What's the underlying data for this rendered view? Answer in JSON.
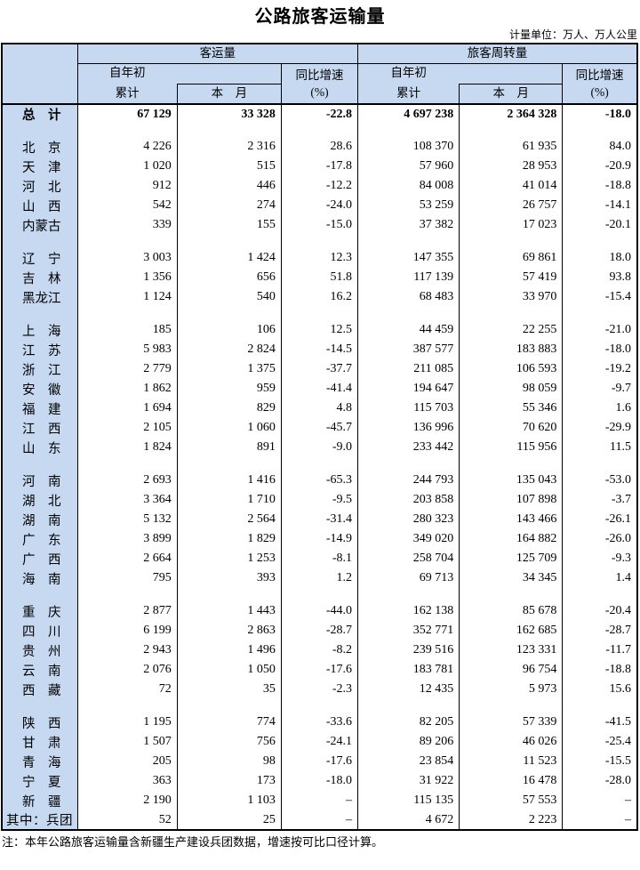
{
  "title": "公路旅客运输量",
  "unit_note": "计量单位：万人、万人公里",
  "footnote": "注：本年公路旅客运输量含新疆生产建设兵团数据，增速按可比口径计算。",
  "colors": {
    "header_bg": "#c6d9f1",
    "border": "#000000",
    "background": "#ffffff"
  },
  "table": {
    "group_headers": [
      "客运量",
      "旅客周转量"
    ],
    "sub_headers": {
      "cum_top": "自年初",
      "cum_bottom": "累计",
      "month": "本　月",
      "growth": "同比增速\n(%)"
    },
    "total_row": {
      "label": "总　计",
      "values": [
        "67 129",
        "33 328",
        "-22.8",
        "4 697 238",
        "2 364 328",
        "-18.0"
      ]
    },
    "groups": [
      {
        "rows": [
          {
            "label": "北　京",
            "values": [
              "4 226",
              "2 316",
              "28.6",
              "108 370",
              "61 935",
              "84.0"
            ]
          },
          {
            "label": "天　津",
            "values": [
              "1 020",
              "515",
              "-17.8",
              "57 960",
              "28 953",
              "-20.9"
            ]
          },
          {
            "label": "河　北",
            "values": [
              "912",
              "446",
              "-12.2",
              "84 008",
              "41 014",
              "-18.8"
            ]
          },
          {
            "label": "山　西",
            "values": [
              "542",
              "274",
              "-24.0",
              "53 259",
              "26 757",
              "-14.1"
            ]
          },
          {
            "label": "内蒙古",
            "values": [
              "339",
              "155",
              "-15.0",
              "37 382",
              "17 023",
              "-20.1"
            ]
          }
        ]
      },
      {
        "rows": [
          {
            "label": "辽　宁",
            "values": [
              "3 003",
              "1 424",
              "12.3",
              "147 355",
              "69 861",
              "18.0"
            ]
          },
          {
            "label": "吉　林",
            "values": [
              "1 356",
              "656",
              "51.8",
              "117 139",
              "57 419",
              "93.8"
            ]
          },
          {
            "label": "黑龙江",
            "values": [
              "1 124",
              "540",
              "16.2",
              "68 483",
              "33 970",
              "-15.4"
            ]
          }
        ]
      },
      {
        "rows": [
          {
            "label": "上　海",
            "values": [
              "185",
              "106",
              "12.5",
              "44 459",
              "22 255",
              "-21.0"
            ]
          },
          {
            "label": "江　苏",
            "values": [
              "5 983",
              "2 824",
              "-14.5",
              "387 577",
              "183 883",
              "-18.0"
            ]
          },
          {
            "label": "浙　江",
            "values": [
              "2 779",
              "1 375",
              "-37.7",
              "211 085",
              "106 593",
              "-19.2"
            ]
          },
          {
            "label": "安　徽",
            "values": [
              "1 862",
              "959",
              "-41.4",
              "194 647",
              "98 059",
              "-9.7"
            ]
          },
          {
            "label": "福　建",
            "values": [
              "1 694",
              "829",
              "4.8",
              "115 703",
              "55 346",
              "1.6"
            ]
          },
          {
            "label": "江　西",
            "values": [
              "2 105",
              "1 060",
              "-45.7",
              "136 996",
              "70 620",
              "-29.9"
            ]
          },
          {
            "label": "山　东",
            "values": [
              "1 824",
              "891",
              "-9.0",
              "233 442",
              "115 956",
              "11.5"
            ]
          }
        ]
      },
      {
        "rows": [
          {
            "label": "河　南",
            "values": [
              "2 693",
              "1 416",
              "-65.3",
              "244 793",
              "135 043",
              "-53.0"
            ]
          },
          {
            "label": "湖　北",
            "values": [
              "3 364",
              "1 710",
              "-9.5",
              "203 858",
              "107 898",
              "-3.7"
            ]
          },
          {
            "label": "湖　南",
            "values": [
              "5 132",
              "2 564",
              "-31.4",
              "280 323",
              "143 466",
              "-26.1"
            ]
          },
          {
            "label": "广　东",
            "values": [
              "3 899",
              "1 829",
              "-14.9",
              "349 020",
              "164 882",
              "-26.0"
            ]
          },
          {
            "label": "广　西",
            "values": [
              "2 664",
              "1 253",
              "-8.1",
              "258 704",
              "125 709",
              "-9.3"
            ]
          },
          {
            "label": "海　南",
            "values": [
              "795",
              "393",
              "1.2",
              "69 713",
              "34 345",
              "1.4"
            ]
          }
        ]
      },
      {
        "rows": [
          {
            "label": "重　庆",
            "values": [
              "2 877",
              "1 443",
              "-44.0",
              "162 138",
              "85 678",
              "-20.4"
            ]
          },
          {
            "label": "四　川",
            "values": [
              "6 199",
              "2 863",
              "-28.7",
              "352 771",
              "162 685",
              "-28.7"
            ]
          },
          {
            "label": "贵　州",
            "values": [
              "2 943",
              "1 496",
              "-8.2",
              "239 516",
              "123 331",
              "-11.7"
            ]
          },
          {
            "label": "云　南",
            "values": [
              "2 076",
              "1 050",
              "-17.6",
              "183 781",
              "96 754",
              "-18.8"
            ]
          },
          {
            "label": "西　藏",
            "values": [
              "72",
              "35",
              "-2.3",
              "12 435",
              "5 973",
              "15.6"
            ]
          }
        ]
      },
      {
        "rows": [
          {
            "label": "陕　西",
            "values": [
              "1 195",
              "774",
              "-33.6",
              "82 205",
              "57 339",
              "-41.5"
            ]
          },
          {
            "label": "甘　肃",
            "values": [
              "1 507",
              "756",
              "-24.1",
              "89 206",
              "46 026",
              "-25.4"
            ]
          },
          {
            "label": "青　海",
            "values": [
              "205",
              "98",
              "-17.6",
              "23 854",
              "11 523",
              "-15.5"
            ]
          },
          {
            "label": "宁　夏",
            "values": [
              "363",
              "173",
              "-18.0",
              "31 922",
              "16 478",
              "-28.0"
            ]
          },
          {
            "label": "新　疆",
            "values": [
              "2 190",
              "1 103",
              "–",
              "115 135",
              "57 553",
              "–"
            ]
          },
          {
            "label": "其中：兵团",
            "flush": true,
            "values": [
              "52",
              "25",
              "–",
              "4 672",
              "2 223",
              "–"
            ]
          }
        ]
      }
    ]
  }
}
